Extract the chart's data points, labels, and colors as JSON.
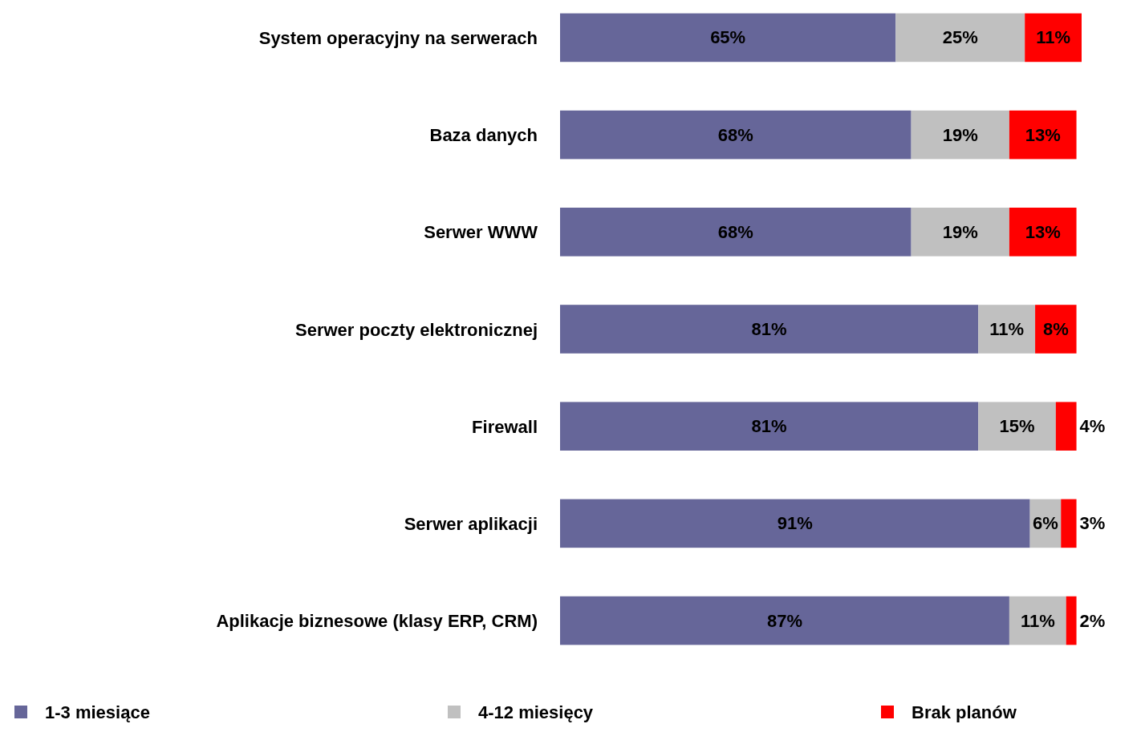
{
  "chart_data": {
    "type": "bar",
    "orientation": "horizontal",
    "stacked": true,
    "legend": "bottom",
    "grid": false,
    "categories": [
      "System operacyjny na serwerach",
      "Baza danych",
      "Serwer WWW",
      "Serwer poczty elektronicznej",
      "Firewall",
      "Serwer aplikacji",
      "Aplikacje biznesowe (klasy ERP, CRM)"
    ],
    "series": [
      {
        "name": "1-3 miesiące",
        "color": "#666699",
        "values": [
          65,
          68,
          68,
          81,
          81,
          91,
          87
        ],
        "value_labels": [
          "65%",
          "68%",
          "68%",
          "81%",
          "81%",
          "91%",
          "87%"
        ]
      },
      {
        "name": "4-12 miesięcy",
        "color": "#c0c0c0",
        "values": [
          25,
          19,
          19,
          11,
          15,
          6,
          11
        ],
        "value_labels": [
          "25%",
          "19%",
          "19%",
          "11%",
          "15%",
          "6%",
          "11%"
        ]
      },
      {
        "name": "Brak planów",
        "color": "#ff0000",
        "values": [
          11,
          13,
          13,
          8,
          4,
          3,
          2
        ],
        "value_labels": [
          "11%",
          "13%",
          "13%",
          "8%",
          "4%",
          "3%",
          "2%"
        ]
      }
    ]
  }
}
